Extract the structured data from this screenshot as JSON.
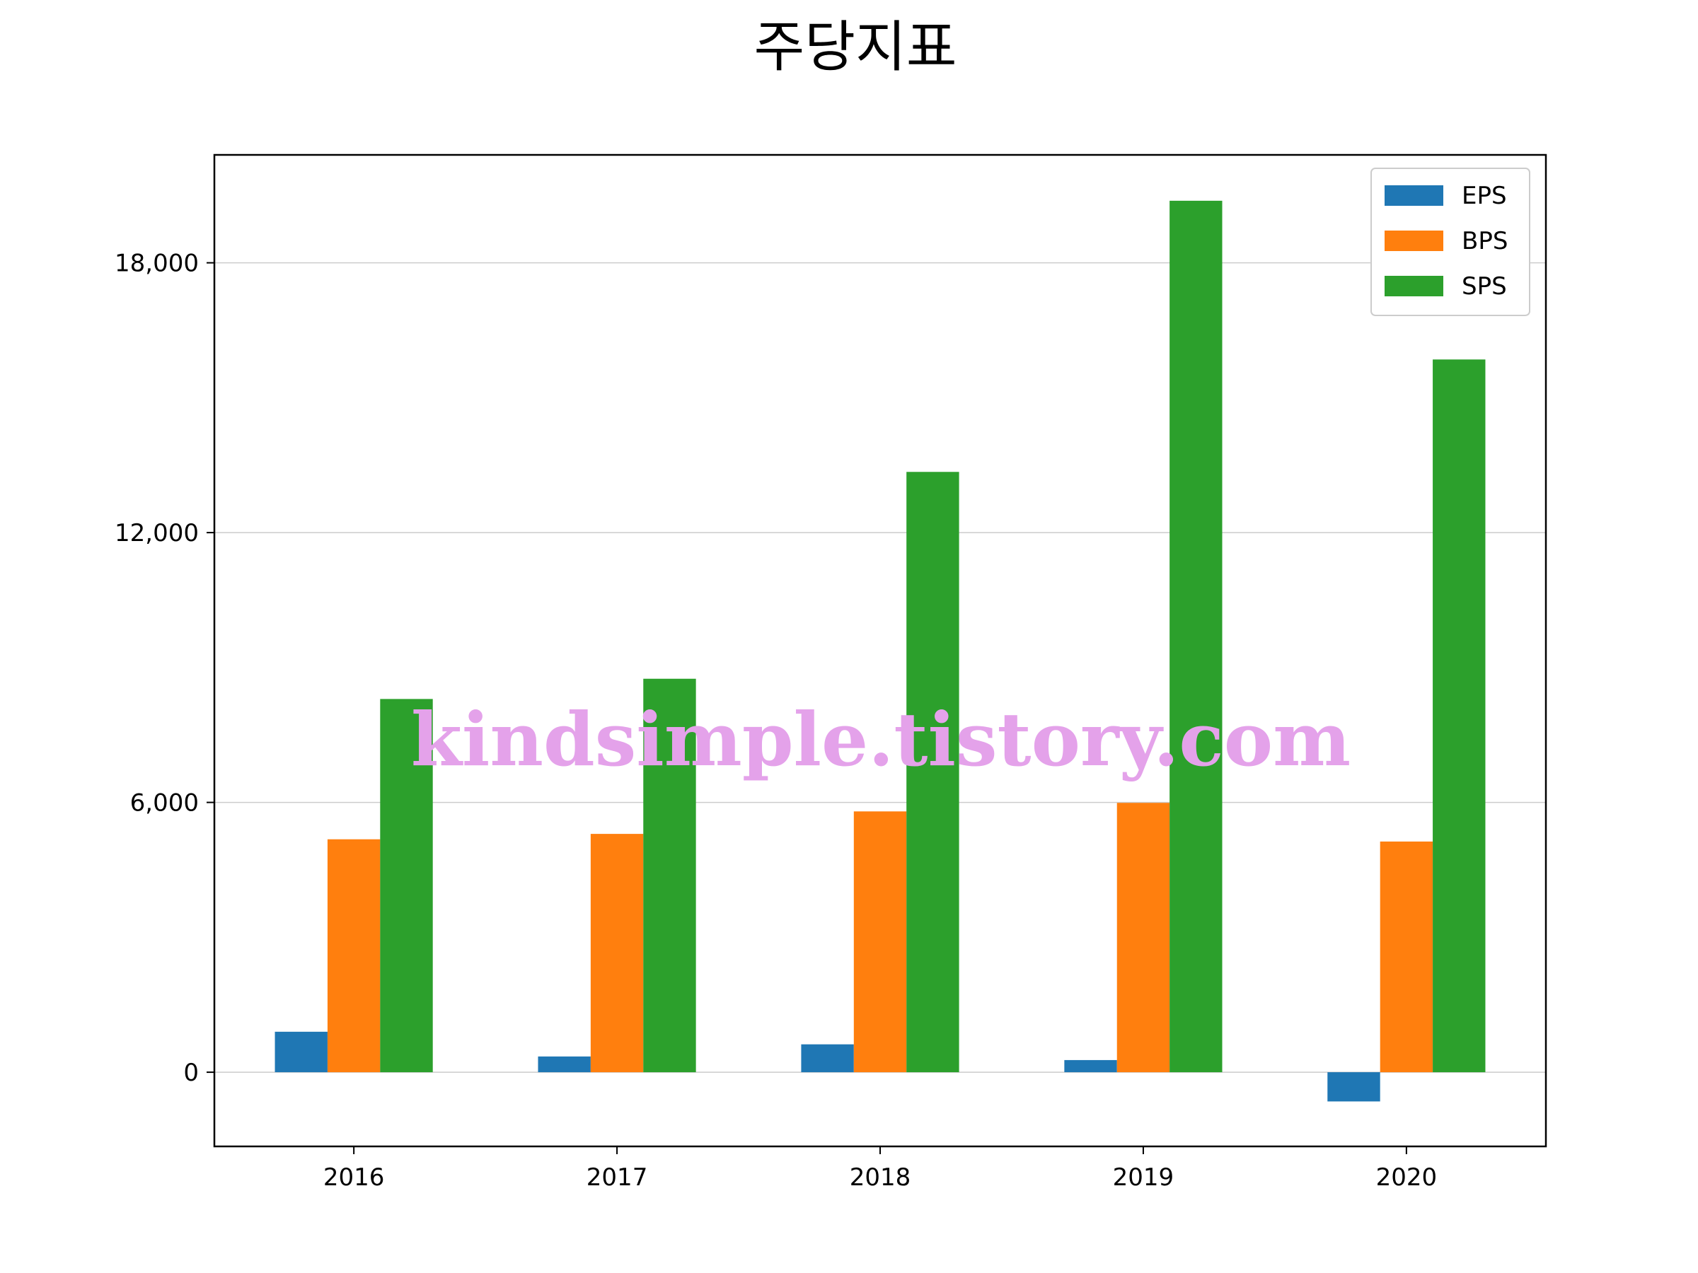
{
  "chart_data": {
    "type": "bar",
    "title": "주당지표",
    "xlabel": "",
    "ylabel": "",
    "categories": [
      "2016",
      "2017",
      "2018",
      "2019",
      "2020"
    ],
    "series": [
      {
        "name": "EPS",
        "values": [
          900,
          350,
          620,
          270,
          -650
        ],
        "color": "#1f77b4"
      },
      {
        "name": "BPS",
        "values": [
          5180,
          5300,
          5800,
          5990,
          5130
        ],
        "color": "#ff7f0e"
      },
      {
        "name": "SPS",
        "values": [
          8300,
          8750,
          13350,
          19380,
          15850
        ],
        "color": "#2ca02c"
      }
    ],
    "ylim": [
      -1650,
      20400
    ],
    "yticks": [
      0,
      6000,
      12000,
      18000
    ],
    "ytick_labels": [
      "0",
      "6,000",
      "12,000",
      "18,000"
    ],
    "grid": "horizontal",
    "legend_position": "top-right"
  },
  "watermark": "kindsimple.tistory.com"
}
